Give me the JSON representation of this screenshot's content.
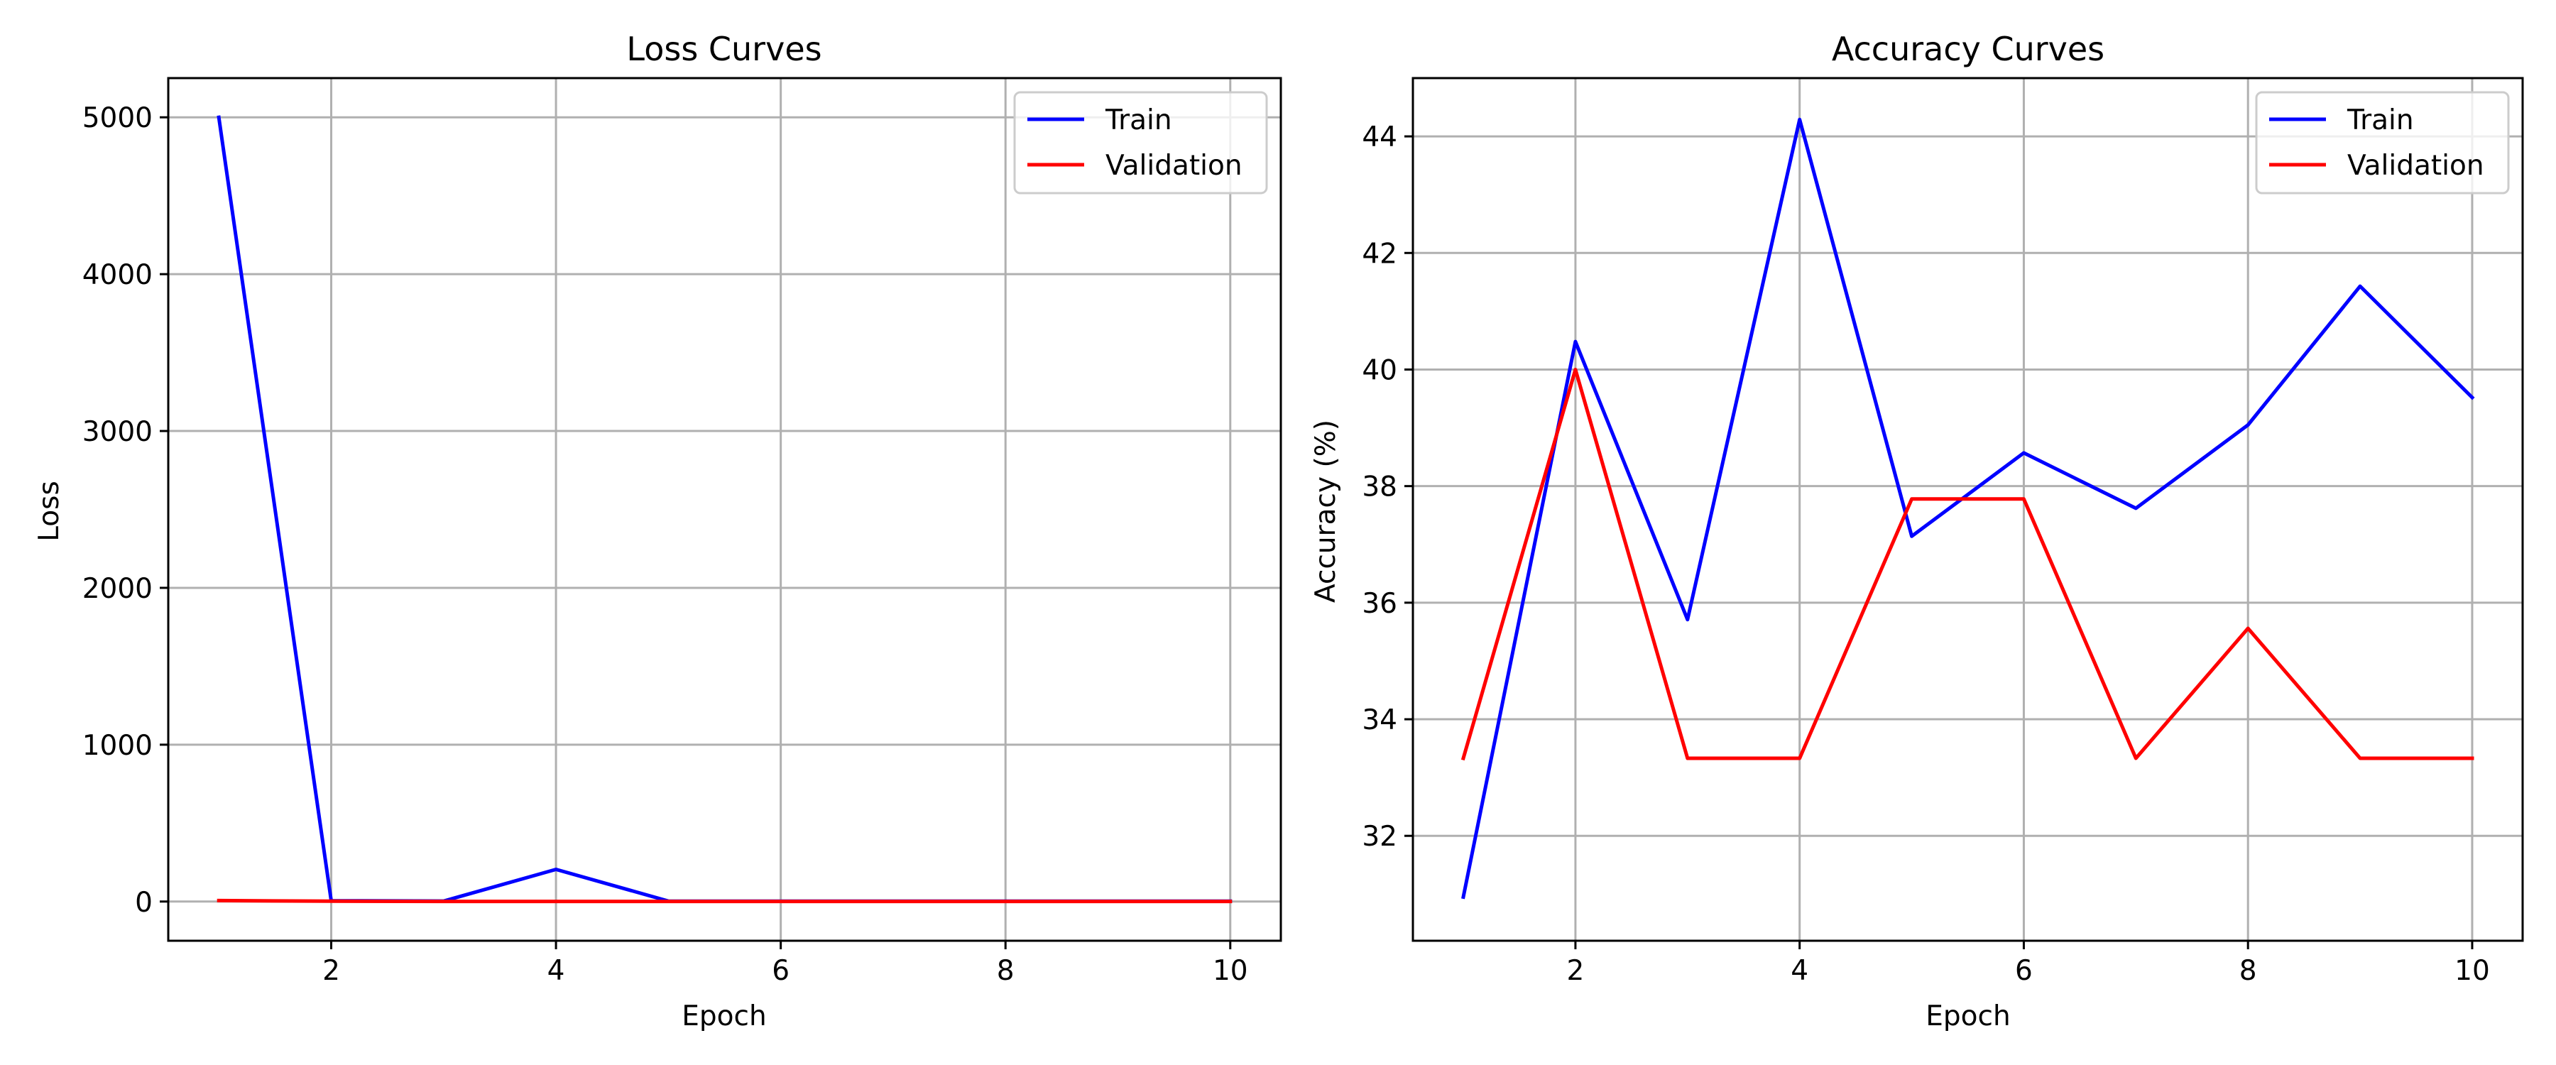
{
  "colors": {
    "train": "#0000ff",
    "validation": "#ff0000",
    "grid": "#b0b0b0",
    "axis": "#000000",
    "legend_border": "#cccccc"
  },
  "chart_data": [
    {
      "type": "line",
      "title": "Loss Curves",
      "xlabel": "Epoch",
      "ylabel": "Loss",
      "x": [
        1,
        2,
        3,
        4,
        5,
        6,
        7,
        8,
        9,
        10
      ],
      "xlim": [
        0.55,
        10.45
      ],
      "ylim": [
        -250,
        5250
      ],
      "xticks": [
        2,
        4,
        6,
        8,
        10
      ],
      "xtick_labels": [
        "2",
        "4",
        "6",
        "8",
        "10"
      ],
      "yticks": [
        0,
        1000,
        2000,
        3000,
        4000,
        5000
      ],
      "ytick_labels": [
        "0",
        "1000",
        "2000",
        "3000",
        "4000",
        "5000"
      ],
      "grid": true,
      "legend": "top-right",
      "series": [
        {
          "name": "Train",
          "color_key": "train",
          "values": [
            5000,
            5,
            3,
            205,
            3,
            2,
            2,
            2,
            2,
            2
          ]
        },
        {
          "name": "Validation",
          "color_key": "validation",
          "values": [
            6,
            2,
            1,
            1,
            1,
            1,
            1,
            1,
            1,
            1
          ]
        }
      ]
    },
    {
      "type": "line",
      "title": "Accuracy Curves",
      "xlabel": "Epoch",
      "ylabel": "Accuracy (%)",
      "x": [
        1,
        2,
        3,
        4,
        5,
        6,
        7,
        8,
        9,
        10
      ],
      "xlim": [
        0.55,
        10.45
      ],
      "ylim": [
        30.2,
        45.0
      ],
      "xticks": [
        2,
        4,
        6,
        8,
        10
      ],
      "xtick_labels": [
        "2",
        "4",
        "6",
        "8",
        "10"
      ],
      "yticks": [
        32,
        34,
        36,
        38,
        40,
        42,
        44
      ],
      "ytick_labels": [
        "32",
        "34",
        "36",
        "38",
        "40",
        "42",
        "44"
      ],
      "grid": true,
      "legend": "top-right",
      "series": [
        {
          "name": "Train",
          "color_key": "train",
          "values": [
            30.95,
            40.48,
            35.71,
            44.29,
            37.14,
            38.57,
            37.62,
            39.05,
            41.43,
            39.52
          ]
        },
        {
          "name": "Validation",
          "color_key": "validation",
          "values": [
            33.33,
            40.0,
            33.33,
            33.33,
            37.78,
            37.78,
            33.33,
            35.56,
            33.33,
            33.33
          ]
        }
      ]
    }
  ]
}
